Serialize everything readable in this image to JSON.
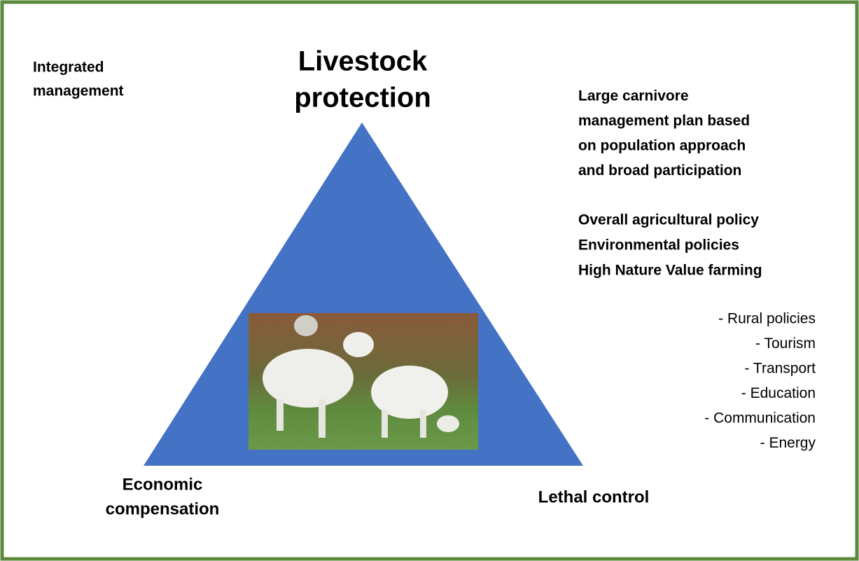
{
  "top_left": [
    "Integrated",
    "management"
  ],
  "triangle": {
    "top": [
      "Livestock",
      "protection"
    ],
    "bottom_left": [
      "Economic",
      "compensation"
    ],
    "bottom_right": "Lethal control"
  },
  "plan": [
    "Large carnivore",
    "management plan based",
    "on population approach",
    "and broad participation"
  ],
  "policies": [
    "Overall agricultural policy",
    "Environmental policies",
    "High Nature Value farming"
  ],
  "sectors": [
    "- Rural policies",
    "- Tourism",
    "- Transport",
    "- Education",
    "- Communication",
    "- Energy"
  ]
}
